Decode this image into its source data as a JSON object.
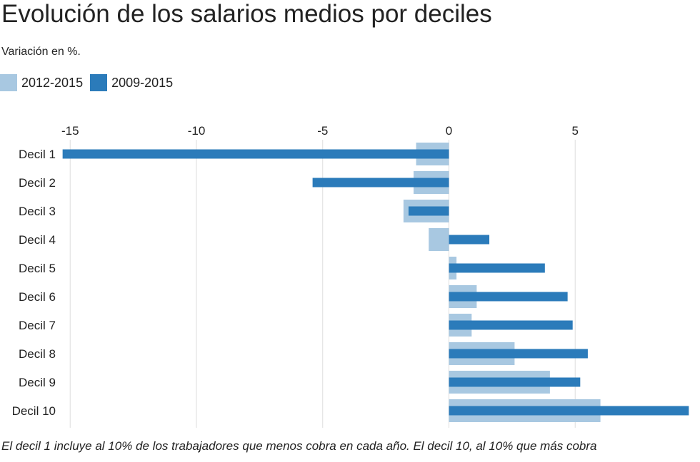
{
  "title": "Evolución de los salarios medios por deciles",
  "subtitle": "Variación en %.",
  "footnote": "El decil 1 incluye al 10% de los trabajadores que menos cobra en cada año. El decil 10, al 10% que más cobra",
  "chart_data": {
    "type": "bar",
    "orientation": "horizontal",
    "categories": [
      "Decil 1",
      "Decil 2",
      "Decil 3",
      "Decil 4",
      "Decil 5",
      "Decil 6",
      "Decil 7",
      "Decil 8",
      "Decil 9",
      "Decil 10"
    ],
    "series": [
      {
        "name": "2012-2015",
        "color": "#a8c8e1",
        "values": [
          -1.3,
          -1.4,
          -1.8,
          -0.8,
          0.3,
          1.1,
          0.9,
          2.6,
          4.0,
          6.0
        ]
      },
      {
        "name": "2009-2015",
        "color": "#2b7bba",
        "values": [
          -15.3,
          -5.4,
          -1.6,
          1.6,
          3.8,
          4.7,
          4.9,
          5.5,
          5.2,
          9.5
        ]
      }
    ],
    "x_ticks": [
      -15,
      -10,
      -5,
      0,
      5
    ],
    "xlim": [
      -15.8,
      10
    ],
    "grid": true,
    "legend_position": "top-left"
  }
}
